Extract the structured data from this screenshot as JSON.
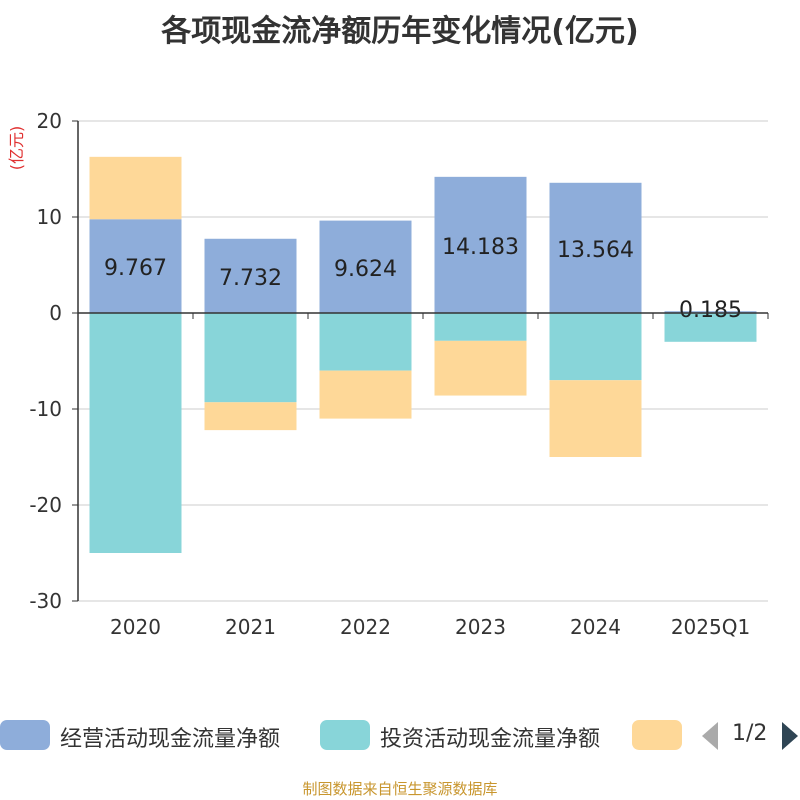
{
  "chart_data": {
    "type": "bar",
    "stacked": true,
    "title": "各项现金流净额历年变化情况(亿元)",
    "ylabel": "(亿元)",
    "ylim": [
      -30,
      20
    ],
    "yticks": [
      20,
      10,
      0,
      -10,
      -20,
      -30
    ],
    "categories": [
      "2020",
      "2021",
      "2022",
      "2023",
      "2024",
      "2025Q1"
    ],
    "series": [
      {
        "name": "经营活动现金流量净额",
        "color": "#8eadda",
        "values": [
          9.767,
          7.732,
          9.624,
          14.183,
          13.564,
          0.185
        ]
      },
      {
        "name": "投资活动现金流量净额",
        "color": "#88d5d9",
        "values": [
          -25.0,
          -9.3,
          -6.0,
          -2.9,
          -7.0,
          -3.0
        ]
      },
      {
        "name": "",
        "color": "#fed898",
        "values": [
          6.5,
          -2.9,
          -5.0,
          -5.7,
          -8.0,
          0
        ]
      }
    ],
    "data_labels": [
      "9.767",
      "7.732",
      "9.624",
      "14.183",
      "13.564",
      "0.185"
    ]
  },
  "legend": {
    "items": [
      {
        "label": "经营活动现金流量净额",
        "color": "#8eadda"
      },
      {
        "label": "投资活动现金流量净额",
        "color": "#88d5d9"
      },
      {
        "label": "",
        "color": "#fed898"
      }
    ],
    "pager_text": "1/2"
  },
  "footer": "制图数据来自恒生聚源数据库"
}
